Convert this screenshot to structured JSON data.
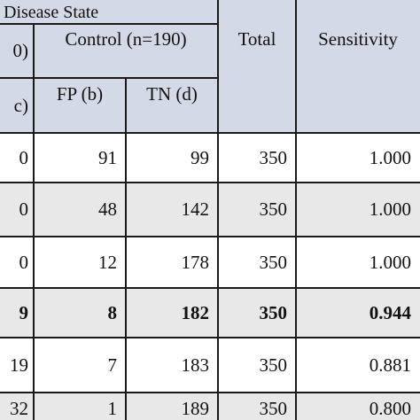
{
  "header": {
    "group_title": "Disease State",
    "disease_partial": "0)",
    "control_label": "Control (n=190)",
    "total_label": "Total",
    "sensitivity_label": "Sensitivity",
    "tp_partial": "c)",
    "fp_label": "FP (b)",
    "tn_label": "TN (d)"
  },
  "rows": [
    {
      "a": "0",
      "fp": "91",
      "tn": "99",
      "total": "350",
      "sens": "1.000",
      "bold": false,
      "shaded": false
    },
    {
      "a": "0",
      "fp": "48",
      "tn": "142",
      "total": "350",
      "sens": "1.000",
      "bold": false,
      "shaded": true
    },
    {
      "a": "0",
      "fp": "12",
      "tn": "178",
      "total": "350",
      "sens": "1.000",
      "bold": false,
      "shaded": false
    },
    {
      "a": "9",
      "fp": "8",
      "tn": "182",
      "total": "350",
      "sens": "0.944",
      "bold": true,
      "shaded": true
    },
    {
      "a": "19",
      "fp": "7",
      "tn": "183",
      "total": "350",
      "sens": "0.881",
      "bold": false,
      "shaded": false
    },
    {
      "a": "32",
      "fp": "1",
      "tn": "189",
      "total": "350",
      "sens": "0.800",
      "bold": false,
      "shaded": true
    }
  ]
}
